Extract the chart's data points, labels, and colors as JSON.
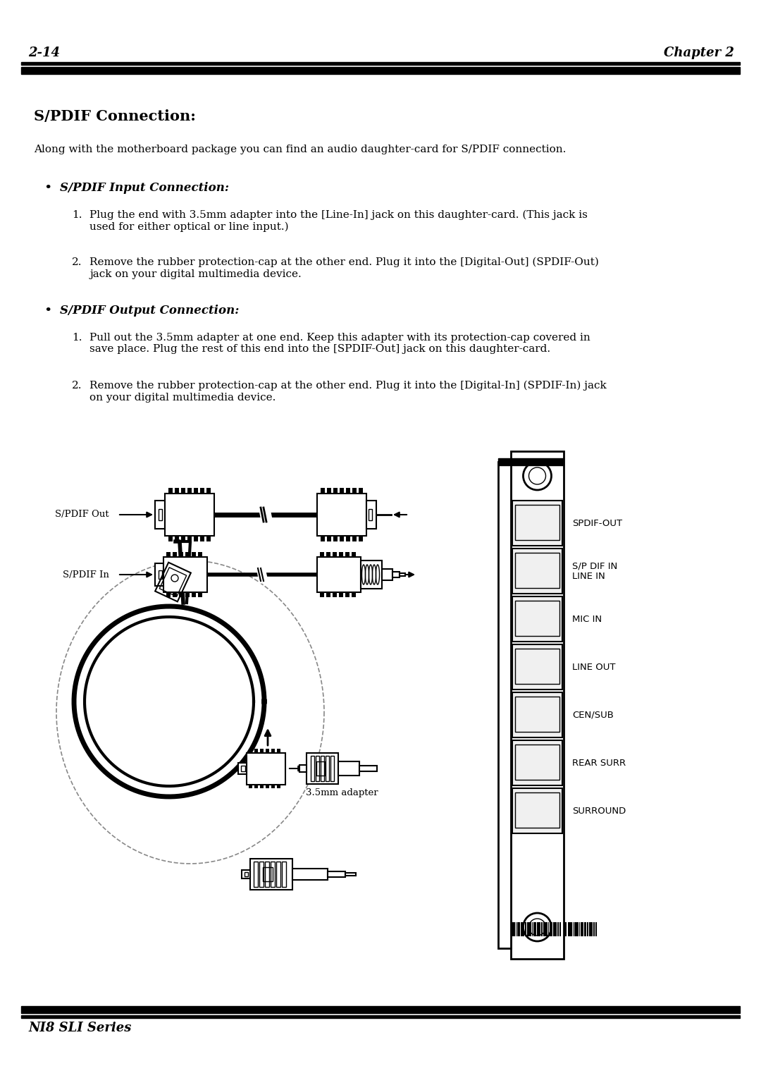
{
  "page_num": "2-14",
  "chapter": "Chapter 2",
  "footer": "NI8 SLI Series",
  "title": "S/PDIF Connection:",
  "intro": "Along with the motherboard package you can find an audio daughter-card for S/PDIF connection.",
  "bullet1_title": "S/PDIF Input Connection:",
  "bullet1_item1_num": "1.",
  "bullet1_item1": "Plug the end with 3.5mm adapter into the [Line-In] jack on this daughter-card. (This jack is\nused for either optical or line input.)",
  "bullet1_item2_num": "2.",
  "bullet1_item2": "Remove the rubber protection-cap at the other end. Plug it into the [Digital-Out] (SPDIF-Out)\njack on your digital multimedia device.",
  "bullet2_title": "S/PDIF Output Connection:",
  "bullet2_item1_num": "1.",
  "bullet2_item1": "Pull out the 3.5mm adapter at one end. Keep this adapter with its protection-cap covered in\nsave place. Plug the rest of this end into the [SPDIF-Out] jack on this daughter-card.",
  "bullet2_item2_num": "2.",
  "bullet2_item2": "Remove the rubber protection-cap at the other end. Plug it into the [Digital-In] (SPDIF-In) jack\non your digital multimedia device.",
  "label_spdif_out": "S/PDIF Out",
  "label_spdif_in": "S/PDIF In",
  "label_35mm": "3.5mm adapter",
  "panel_labels": [
    "SPDIF-OUT",
    "S/P DIF IN\nLINE IN",
    "MIC IN",
    "LINE OUT",
    "CEN/SUB",
    "REAR SURR",
    "SURROUND"
  ],
  "bg_color": "#ffffff",
  "text_color": "#000000",
  "fig_width": 10.8,
  "fig_height": 15.29,
  "dpi": 100
}
